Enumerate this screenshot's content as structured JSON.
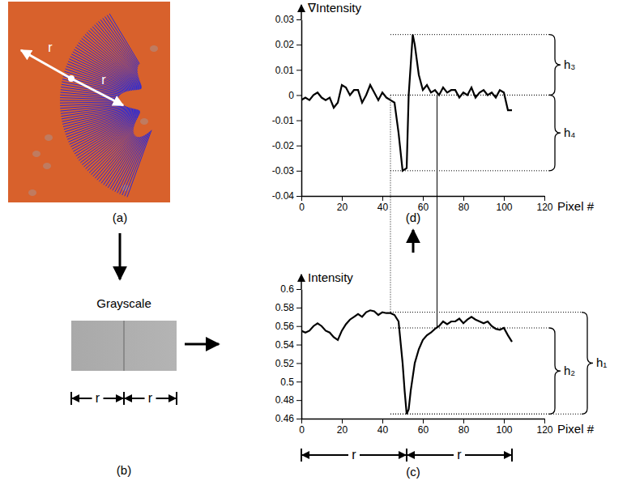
{
  "figure": {
    "panels": [
      {
        "label": "(a)",
        "annotations": [
          "r",
          "r"
        ]
      },
      {
        "label": "(b)",
        "title": "Grayscale",
        "annotations": [
          "r",
          "r"
        ]
      }
    ],
    "guides_x": [
      44,
      67
    ]
  },
  "chart_data": [
    {
      "type": "line",
      "label": "(d)",
      "y_label": "∇Intensity",
      "x_label": "Pixel #",
      "x": [
        0,
        2,
        4,
        6,
        8,
        10,
        12,
        14,
        16,
        18,
        20,
        22,
        24,
        26,
        28,
        30,
        32,
        34,
        36,
        38,
        40,
        42,
        44,
        46,
        48,
        50,
        52,
        53,
        55,
        56,
        58,
        60,
        62,
        64,
        66,
        68,
        70,
        72,
        74,
        76,
        78,
        80,
        82,
        84,
        86,
        88,
        90,
        92,
        94,
        96,
        98,
        100,
        102,
        104
      ],
      "series": [
        {
          "color": "#000000",
          "values": [
            -0.002,
            -0.001,
            -0.002,
            0,
            0.001,
            -0.001,
            -0.002,
            -0.001,
            -0.005,
            -0.003,
            0.004,
            0.003,
            0,
            0.002,
            0.002,
            -0.003,
            0,
            0.004,
            0.001,
            -0.002,
            0.001,
            -0.001,
            -0.002,
            -0.003,
            -0.015,
            -0.03,
            -0.029,
            0,
            0.024,
            0.02,
            0.008,
            0.002,
            0.004,
            0.001,
            0.002,
            0,
            0.003,
            0.001,
            0.002,
            0.002,
            -0.001,
            0.001,
            0,
            0.003,
            -0.001,
            0.001,
            0.002,
            0,
            0.001,
            -0.001,
            0.002,
            0.001,
            -0.006,
            -0.006
          ]
        }
      ],
      "xlim": [
        0,
        120
      ],
      "ylim": [
        -0.04,
        0.03
      ],
      "xticks": [
        0,
        20,
        40,
        60,
        80,
        100,
        120
      ],
      "yticks": [
        -0.04,
        -0.03,
        -0.02,
        -0.01,
        0,
        0.01,
        0.02,
        0.03
      ],
      "annotations": [
        {
          "text": "h₃",
          "from": 0,
          "to": 0.024
        },
        {
          "text": "h₄",
          "from": -0.03,
          "to": 0
        }
      ]
    },
    {
      "type": "line",
      "label": "(c)",
      "y_label": "Intensity",
      "x_label": "Pixel #",
      "x": [
        0,
        2,
        4,
        6,
        8,
        10,
        12,
        14,
        16,
        18,
        20,
        22,
        24,
        26,
        28,
        30,
        32,
        34,
        36,
        38,
        40,
        42,
        44,
        46,
        48,
        50,
        51,
        52,
        53,
        54,
        56,
        58,
        60,
        62,
        64,
        66,
        68,
        70,
        72,
        74,
        76,
        78,
        80,
        82,
        84,
        86,
        88,
        90,
        92,
        94,
        96,
        98,
        100,
        102,
        104
      ],
      "series": [
        {
          "color": "#000000",
          "values": [
            0.555,
            0.553,
            0.555,
            0.56,
            0.563,
            0.56,
            0.555,
            0.553,
            0.548,
            0.545,
            0.555,
            0.562,
            0.567,
            0.57,
            0.573,
            0.57,
            0.575,
            0.577,
            0.576,
            0.572,
            0.575,
            0.574,
            0.574,
            0.572,
            0.565,
            0.52,
            0.49,
            0.465,
            0.47,
            0.49,
            0.52,
            0.535,
            0.545,
            0.55,
            0.553,
            0.557,
            0.56,
            0.565,
            0.562,
            0.565,
            0.565,
            0.568,
            0.563,
            0.567,
            0.57,
            0.567,
            0.565,
            0.563,
            0.565,
            0.56,
            0.557,
            0.556,
            0.558,
            0.55,
            0.543
          ]
        }
      ],
      "xlim": [
        0,
        120
      ],
      "ylim": [
        0.46,
        0.6
      ],
      "xticks": [
        0,
        20,
        40,
        60,
        80,
        100,
        120
      ],
      "yticks": [
        0.46,
        0.48,
        0.5,
        0.52,
        0.54,
        0.56,
        0.58,
        0.6
      ],
      "annotations": [
        {
          "text": "h₁",
          "from": 0.465,
          "to": 0.575
        },
        {
          "text": "h₂",
          "from": 0.465,
          "to": 0.558
        }
      ],
      "spans": [
        {
          "text": "r",
          "from": 0,
          "to": 52
        },
        {
          "text": "r",
          "from": 52,
          "to": 104
        }
      ]
    }
  ]
}
